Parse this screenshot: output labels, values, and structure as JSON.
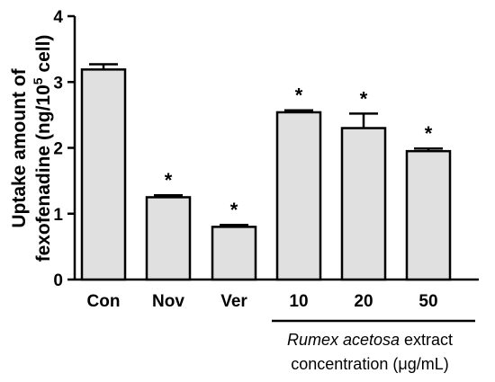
{
  "chart_data": {
    "type": "bar",
    "categories": [
      "Con",
      "Nov",
      "Ver",
      "10",
      "20",
      "50"
    ],
    "values": [
      3.19,
      1.25,
      0.8,
      2.54,
      2.3,
      1.95
    ],
    "errors": [
      0.08,
      0.03,
      0.03,
      0.03,
      0.22,
      0.04
    ],
    "significance": [
      "",
      "*",
      "*",
      "*",
      "*",
      "*"
    ],
    "ylabel_line1": "Uptake amount of",
    "ylabel_line2_main": "fexofenadine (ng/10",
    "ylabel_line2_sup": "5",
    "ylabel_line2_end": " cell)",
    "ylim": [
      0,
      4
    ],
    "yticks": [
      "0",
      "1",
      "2",
      "3",
      "4"
    ],
    "group_label": {
      "italic_part": "Rumex acetosa",
      "rest_line1": " extract",
      "line2": "concentration (μg/mL)",
      "covers": [
        "10",
        "20",
        "50"
      ]
    },
    "bar_fill": "#e0e0e0",
    "bar_stroke": "#000000"
  }
}
